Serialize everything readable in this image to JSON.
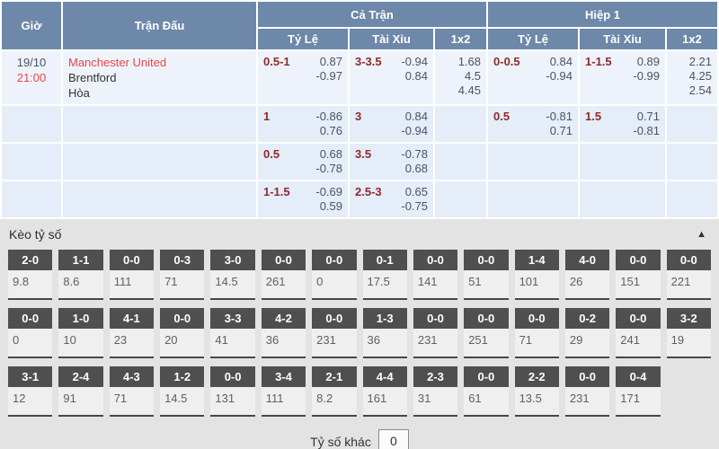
{
  "colors": {
    "header_bg": "#6d88a9",
    "row1_bg": "#eef3fb",
    "row_bg": "#e4edf8",
    "red": "#e94649",
    "maroon": "#8e2a2b",
    "odds_text": "#4a5364",
    "section_bg": "#e3e3e3",
    "chip_bg": "#4f4f4f",
    "value_bg": "#efefef",
    "value_border": "#474747"
  },
  "odds_table": {
    "headers": {
      "time": "Giờ",
      "match": "Trận Đấu",
      "full": "Cả Trận",
      "half": "Hiệp 1",
      "full_sub": [
        "Tỷ Lệ",
        "Tài Xỉu",
        "1x2"
      ],
      "half_sub": [
        "Tỷ Lệ",
        "Tài Xỉu",
        "1x2"
      ]
    },
    "match_info": {
      "date": "19/10",
      "time": "21:00",
      "home": "Manchester United",
      "away": "Brentford",
      "draw": "Hòa"
    },
    "rows": [
      {
        "full_hdp": {
          "line": "0.5-1",
          "odds": [
            "0.87",
            "-0.97"
          ]
        },
        "full_ou": {
          "line": "3-3.5",
          "odds": [
            "-0.94",
            "0.84"
          ]
        },
        "full_1x2": [
          "1.68",
          "4.5",
          "4.45"
        ],
        "half_hdp": {
          "line": "0-0.5",
          "odds": [
            "0.84",
            "-0.94"
          ]
        },
        "half_ou": {
          "line": "1-1.5",
          "odds": [
            "0.89",
            "-0.99"
          ]
        },
        "half_1x2": [
          "2.21",
          "4.25",
          "2.54"
        ]
      },
      {
        "full_hdp": {
          "line": "1",
          "odds": [
            "-0.86",
            "0.76"
          ]
        },
        "full_ou": {
          "line": "3",
          "odds": [
            "0.84",
            "-0.94"
          ]
        },
        "full_1x2": null,
        "half_hdp": {
          "line": "0.5",
          "odds": [
            "-0.81",
            "0.71"
          ]
        },
        "half_ou": {
          "line": "1.5",
          "odds": [
            "0.71",
            "-0.81"
          ]
        },
        "half_1x2": null
      },
      {
        "full_hdp": {
          "line": "0.5",
          "odds": [
            "0.68",
            "-0.78"
          ]
        },
        "full_ou": {
          "line": "3.5",
          "odds": [
            "-0.78",
            "0.68"
          ]
        },
        "full_1x2": null,
        "half_hdp": null,
        "half_ou": null,
        "half_1x2": null
      },
      {
        "full_hdp": {
          "line": "1-1.5",
          "odds": [
            "-0.69",
            "0.59"
          ]
        },
        "full_ou": {
          "line": "2.5-3",
          "odds": [
            "0.65",
            "-0.75"
          ]
        },
        "full_1x2": null,
        "half_hdp": null,
        "half_ou": null,
        "half_1x2": null
      }
    ]
  },
  "score_section": {
    "title": "Kèo tỷ số",
    "collapse_icon": "▲",
    "other_label": "Tỷ số khác",
    "other_value": "0",
    "rows": [
      [
        {
          "score": "2-0",
          "odds": "9.8"
        },
        {
          "score": "1-1",
          "odds": "8.6"
        },
        {
          "score": "0-0",
          "odds": "111"
        },
        {
          "score": "0-3",
          "odds": "71"
        },
        {
          "score": "3-0",
          "odds": "14.5"
        },
        {
          "score": "0-0",
          "odds": "261"
        },
        {
          "score": "0-0",
          "odds": "0"
        },
        {
          "score": "0-1",
          "odds": "17.5"
        },
        {
          "score": "0-0",
          "odds": "141"
        },
        {
          "score": "0-0",
          "odds": "51"
        },
        {
          "score": "1-4",
          "odds": "101"
        },
        {
          "score": "4-0",
          "odds": "26"
        },
        {
          "score": "0-0",
          "odds": "151"
        },
        {
          "score": "0-0",
          "odds": "221"
        }
      ],
      [
        {
          "score": "0-0",
          "odds": "0"
        },
        {
          "score": "1-0",
          "odds": "10"
        },
        {
          "score": "4-1",
          "odds": "23"
        },
        {
          "score": "0-0",
          "odds": "20"
        },
        {
          "score": "3-3",
          "odds": "41"
        },
        {
          "score": "4-2",
          "odds": "36"
        },
        {
          "score": "0-0",
          "odds": "231"
        },
        {
          "score": "1-3",
          "odds": "36"
        },
        {
          "score": "0-0",
          "odds": "231"
        },
        {
          "score": "0-0",
          "odds": "251"
        },
        {
          "score": "0-0",
          "odds": "71"
        },
        {
          "score": "0-2",
          "odds": "29"
        },
        {
          "score": "0-0",
          "odds": "241"
        },
        {
          "score": "3-2",
          "odds": "19"
        }
      ],
      [
        {
          "score": "3-1",
          "odds": "12"
        },
        {
          "score": "2-4",
          "odds": "91"
        },
        {
          "score": "4-3",
          "odds": "71"
        },
        {
          "score": "1-2",
          "odds": "14.5"
        },
        {
          "score": "0-0",
          "odds": "131"
        },
        {
          "score": "3-4",
          "odds": "111"
        },
        {
          "score": "2-1",
          "odds": "8.2"
        },
        {
          "score": "4-4",
          "odds": "161"
        },
        {
          "score": "2-3",
          "odds": "31"
        },
        {
          "score": "0-0",
          "odds": "61"
        },
        {
          "score": "2-2",
          "odds": "13.5"
        },
        {
          "score": "0-0",
          "odds": "231"
        },
        {
          "score": "0-4",
          "odds": "171"
        }
      ]
    ]
  }
}
